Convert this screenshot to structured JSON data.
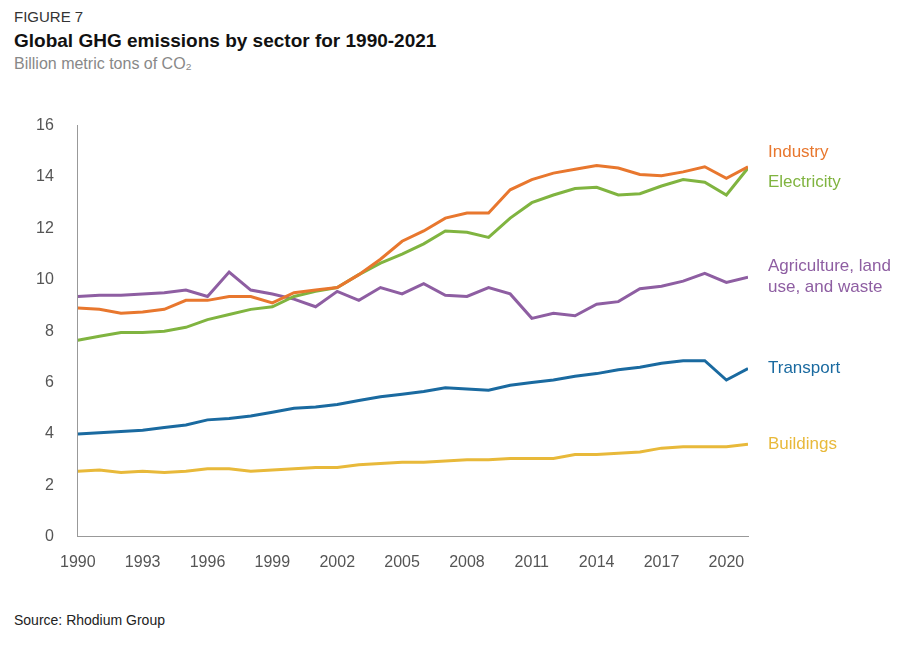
{
  "chart_data": {
    "type": "line",
    "figure_label": "FIGURE 7",
    "title": "Global GHG emissions by sector for 1990-2021",
    "subtitle": "Billion metric tons of CO₂",
    "source": "Source: Rhodium Group",
    "x": [
      1990,
      1991,
      1992,
      1993,
      1994,
      1995,
      1996,
      1997,
      1998,
      1999,
      2000,
      2001,
      2002,
      2003,
      2004,
      2005,
      2006,
      2007,
      2008,
      2009,
      2010,
      2011,
      2012,
      2013,
      2014,
      2015,
      2016,
      2017,
      2018,
      2019,
      2020,
      2021
    ],
    "xlim": [
      1990,
      2021
    ],
    "xticks": [
      1990,
      1993,
      1996,
      1999,
      2002,
      2005,
      2008,
      2011,
      2014,
      2017,
      2020
    ],
    "ylim": [
      0,
      16
    ],
    "yticks": [
      0,
      2,
      4,
      6,
      8,
      10,
      12,
      14,
      16
    ],
    "grid": false,
    "series": [
      {
        "name": "Industry",
        "color": "#e8772e",
        "values": [
          8.9,
          8.85,
          8.7,
          8.75,
          8.85,
          9.2,
          9.2,
          9.35,
          9.35,
          9.1,
          9.5,
          9.6,
          9.7,
          10.2,
          10.8,
          11.5,
          11.9,
          12.4,
          12.6,
          12.6,
          13.5,
          13.9,
          14.15,
          14.3,
          14.45,
          14.35,
          14.1,
          14.05,
          14.2,
          14.4,
          13.95,
          14.4
        ]
      },
      {
        "name": "Electricity",
        "color": "#80b440",
        "values": [
          7.65,
          7.8,
          7.95,
          7.95,
          8.0,
          8.15,
          8.45,
          8.65,
          8.85,
          8.95,
          9.35,
          9.55,
          9.7,
          10.2,
          10.65,
          11.0,
          11.4,
          11.9,
          11.85,
          11.65,
          12.4,
          13.0,
          13.3,
          13.55,
          13.6,
          13.3,
          13.35,
          13.65,
          13.9,
          13.8,
          13.3,
          14.35
        ]
      },
      {
        "name": "Agriculture, land use, and waste",
        "color": "#8e5ea2",
        "values": [
          9.35,
          9.4,
          9.4,
          9.45,
          9.5,
          9.6,
          9.35,
          10.3,
          9.6,
          9.45,
          9.25,
          8.95,
          9.55,
          9.2,
          9.7,
          9.45,
          9.85,
          9.4,
          9.35,
          9.7,
          9.45,
          8.5,
          8.7,
          8.6,
          9.05,
          9.15,
          9.65,
          9.75,
          9.95,
          10.25,
          9.9,
          10.1
        ]
      },
      {
        "name": "Transport",
        "color": "#1a6aa0",
        "values": [
          4.0,
          4.05,
          4.1,
          4.15,
          4.25,
          4.35,
          4.55,
          4.6,
          4.7,
          4.85,
          5.0,
          5.05,
          5.15,
          5.3,
          5.45,
          5.55,
          5.65,
          5.8,
          5.75,
          5.7,
          5.9,
          6.0,
          6.1,
          6.25,
          6.35,
          6.5,
          6.6,
          6.75,
          6.85,
          6.85,
          6.1,
          6.55
        ]
      },
      {
        "name": "Buildings",
        "color": "#e8b93a",
        "values": [
          2.55,
          2.6,
          2.5,
          2.55,
          2.5,
          2.55,
          2.65,
          2.65,
          2.55,
          2.6,
          2.65,
          2.7,
          2.7,
          2.8,
          2.85,
          2.9,
          2.9,
          2.95,
          3.0,
          3.0,
          3.05,
          3.05,
          3.05,
          3.2,
          3.2,
          3.25,
          3.3,
          3.45,
          3.5,
          3.5,
          3.5,
          3.6
        ]
      }
    ]
  }
}
